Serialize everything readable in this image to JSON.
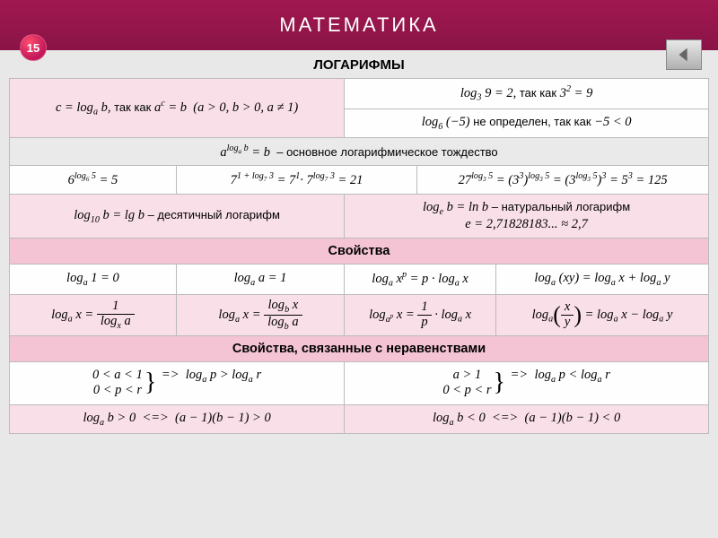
{
  "header": {
    "title": "МАТЕМАТИКА",
    "page_number": "15"
  },
  "section_title": "ЛОГАРИФМЫ",
  "rows": {
    "def_left": "c = log<sub>a</sub> b, <span class='ru'>так как</span> a<sup>c</sup> = b &nbsp;(a > 0, b > 0, a ≠ 1)",
    "def_r1": "log<sub>3</sub> 9 = 2, <span class='ru'>так как</span> 3<sup>2</sup> = 9",
    "def_r2": "log<sub>6</sub> (−5) <span class='ru'>не определен, так как</span> −5 < 0",
    "identity": "a<sup>log<sub>a</sub> b</sup> = b <span class='ru'>&nbsp;– основное логарифмическое тождество</span>",
    "ex1": "6<sup>log<sub>6</sub> 5</sup> = 5",
    "ex2": "7<sup>1 + log<sub>7</sub> 3</sup> = 7<sup>1</sup>· 7<sup>log<sub>7</sub> 3</sup> = 21",
    "ex3": "27<sup>log<sub>3</sub> 5</sup> = (3<sup>3</sup>)<sup>log<sub>3</sub> 5</sup> = (3<sup>log<sub>3</sub> 5</sup>)<sup>3</sup> = 5<sup>3</sup> = 125",
    "lg": "log<sub>10</sub> b = lg b <span class='ru'>– десятичный логарифм</span>",
    "ln": "log<sub>e</sub> b = ln b <span class='ru'>– натуральный логарифм</span><br>e = 2,71828183... ≈ 2,7",
    "props_h": "Свойства",
    "p1": "log<sub>a</sub> 1 = 0",
    "p2": "log<sub>a</sub> a = 1",
    "p3": "log<sub>a</sub> x<sup>p</sup> = p · log<sub>a</sub> x",
    "p4": "log<sub>a</sub> (xy) = log<sub>a</sub> x + log<sub>a</sub> y",
    "p5": "log<sub>a</sub> x = <span class='frac'><span class='num'>1</span><span class='den'>log<sub>x</sub> a</span></span>",
    "p6": "log<sub>a</sub> x = <span class='frac'><span class='num'>log<sub>b</sub> x</span><span class='den'>log<sub>b</sub> a</span></span>",
    "p7": "log<sub>a<sup>p</sup></sub> x = <span class='frac'><span class='num'>1</span><span class='den'>p</span></span> · log<sub>a</sub> x",
    "p8": "log<sub>a</sub><span class='lparen-big'>(</span><span class='frac'><span class='num'>x</span><span class='den'>y</span></span><span class='rparen-big'>)</span> = log<sub>a</sub> x − log<sub>a</sub> y",
    "ineq_h": "Свойства, связанные с неравенствами",
    "i1": "<span class='brace-group'><span class='brace-lines'>0 < a < 1<br>0 < p < r</span><span class='rbrace'>}</span></span> => &nbsp;log<sub>a</sub> p > log<sub>a</sub> r",
    "i2": "<span class='brace-group'><span class='brace-lines'>a > 1<br>0 < p < r</span><span class='rbrace'>}</span></span> => &nbsp;log<sub>a</sub> p < log<sub>a</sub> r",
    "i3": "log<sub>a</sub> b > 0 &nbsp;<=>&nbsp; (a − 1)(b − 1) > 0",
    "i4": "log<sub>a</sub> b < 0 &nbsp;<=>&nbsp; (a − 1)(b − 1) < 0"
  },
  "colors": {
    "header_bg": "#8a1445",
    "pink_row": "#f9dfe7",
    "pink_header": "#f5c4d4"
  }
}
